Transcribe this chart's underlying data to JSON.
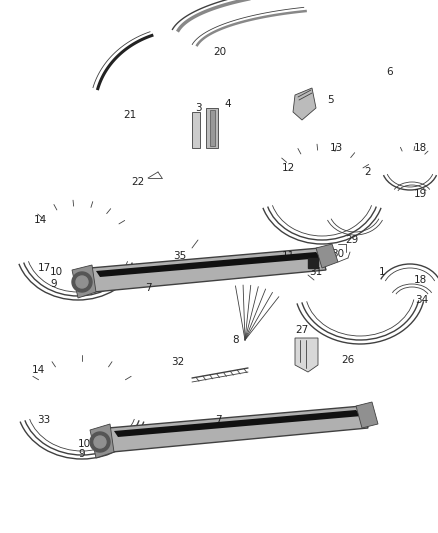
{
  "bg_color": "#ffffff",
  "line_color": "#404040",
  "label_color": "#222222",
  "lw_main": 1.0,
  "lw_thin": 0.6,
  "label_fs": 7.5
}
